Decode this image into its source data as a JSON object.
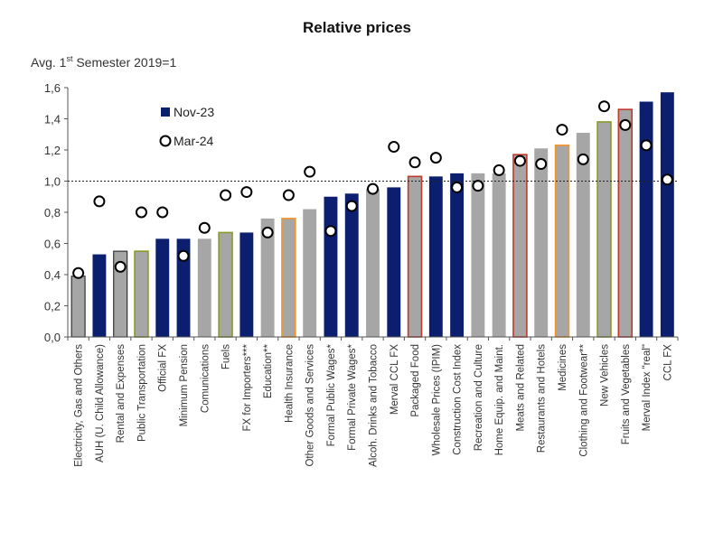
{
  "chart_data": {
    "type": "bar",
    "title": "Relative prices",
    "ylabel_prefix": "Avg. 1",
    "ylabel_sup": "st",
    "ylabel_suffix": " Semester 2019=1",
    "ylim": [
      0,
      1.6
    ],
    "yticks": [
      "0,0",
      "0,2",
      "0,4",
      "0,6",
      "0,8",
      "1,0",
      "1,2",
      "1,4",
      "1,6"
    ],
    "reference_line": 1.0,
    "legend": {
      "bar_label": "Nov-23",
      "marker_label": "Mar-24",
      "position": "top-left"
    },
    "colors": {
      "navy": "#0b1f6e",
      "gray": "#a6a6a6",
      "olive_outline": "#8a9a2a",
      "orange_outline": "#f0952a",
      "red_outline": "#c0392b",
      "dark_outline": "#333333"
    },
    "categories": [
      "Electricity, Gas and Others",
      "AUH (U. Child Allowance)",
      "Rental and Expenses",
      "Public Transportation",
      "Official FX",
      "Minimum Pension",
      "Comunications",
      "Fuels",
      "FX for  Importers***",
      "Education**",
      "Health Insurance",
      "Other Goods and Services",
      "Formal Public Wages*",
      "Formal Private Wages*",
      "Alcoh. Drinks and Tobacco",
      "Merval CCL FX",
      "Packaged Food",
      "Wholesale Prices (IPIM)",
      "Construction Cost Index",
      "Recreation and Culture",
      "Home Equip. and Maint.",
      "Meats and Related",
      "Restaurants and Hotels",
      "Medicines",
      "Clothing and Footwear**",
      "New Vehicles",
      "Fruits and Vegetables",
      "Merval Index \"real\"",
      "CCL FX"
    ],
    "series": [
      {
        "name": "Nov-23",
        "values": [
          0.39,
          0.53,
          0.55,
          0.55,
          0.63,
          0.63,
          0.63,
          0.67,
          0.67,
          0.76,
          0.76,
          0.82,
          0.9,
          0.92,
          0.95,
          0.96,
          1.03,
          1.03,
          1.05,
          1.05,
          1.05,
          1.17,
          1.21,
          1.23,
          1.31,
          1.38,
          1.46,
          1.51,
          1.57
        ]
      },
      {
        "name": "Mar-24",
        "values": [
          0.41,
          0.87,
          0.45,
          0.8,
          0.8,
          0.52,
          0.7,
          0.91,
          0.93,
          0.67,
          0.91,
          1.06,
          0.68,
          0.84,
          0.95,
          1.22,
          1.12,
          1.15,
          0.96,
          0.97,
          1.07,
          1.13,
          1.11,
          1.33,
          1.14,
          1.48,
          1.36,
          1.23,
          1.01
        ]
      }
    ],
    "bar_styles": [
      "gray-dark",
      "navy",
      "gray-dark",
      "gray-olive",
      "navy",
      "navy",
      "gray",
      "gray-olive",
      "navy",
      "gray",
      "gray-orange",
      "gray",
      "navy",
      "navy",
      "gray",
      "navy",
      "gray-red",
      "navy",
      "navy",
      "gray",
      "gray",
      "gray-red",
      "gray",
      "gray-orange",
      "gray",
      "gray-olive",
      "gray-red",
      "navy",
      "navy"
    ]
  }
}
